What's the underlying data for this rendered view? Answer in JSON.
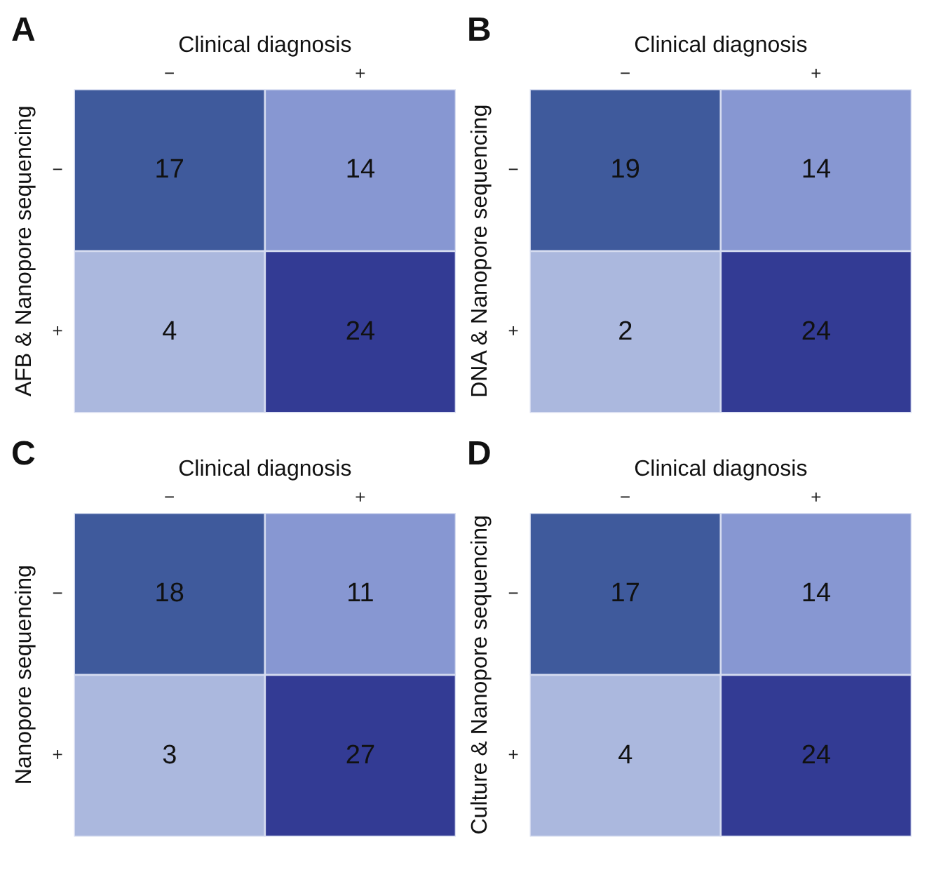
{
  "chart_data": [
    {
      "type": "heatmap",
      "title": "A",
      "xlabel": "Clinical diagnosis",
      "ylabel": "AFB & Nanopore sequencing",
      "categories": [
        "−",
        "+"
      ],
      "y_categories": [
        "−",
        "+"
      ],
      "cells": [
        [
          17,
          14
        ],
        [
          4,
          24
        ]
      ],
      "colors": [
        [
          "#3f5a9c",
          "#8797d2"
        ],
        [
          "#abb8de",
          "#333b94"
        ]
      ],
      "data_labels": true,
      "grid": false,
      "legend": false
    },
    {
      "type": "heatmap",
      "title": "B",
      "xlabel": "Clinical diagnosis",
      "ylabel": "DNA & Nanopore sequencing",
      "categories": [
        "−",
        "+"
      ],
      "y_categories": [
        "−",
        "+"
      ],
      "cells": [
        [
          19,
          14
        ],
        [
          2,
          24
        ]
      ],
      "colors": [
        [
          "#3f5a9c",
          "#8797d2"
        ],
        [
          "#abb8de",
          "#333b94"
        ]
      ],
      "data_labels": true,
      "grid": false,
      "legend": false
    },
    {
      "type": "heatmap",
      "title": "C",
      "xlabel": "Clinical diagnosis",
      "ylabel": "Nanopore sequencing",
      "categories": [
        "−",
        "+"
      ],
      "y_categories": [
        "−",
        "+"
      ],
      "cells": [
        [
          18,
          11
        ],
        [
          3,
          27
        ]
      ],
      "colors": [
        [
          "#3f5a9c",
          "#8797d2"
        ],
        [
          "#abb8de",
          "#333b94"
        ]
      ],
      "data_labels": true,
      "grid": false,
      "legend": false
    },
    {
      "type": "heatmap",
      "title": "D",
      "xlabel": "Clinical diagnosis",
      "ylabel": "Culture & Nanopore sequencing",
      "categories": [
        "−",
        "+"
      ],
      "y_categories": [
        "−",
        "+"
      ],
      "cells": [
        [
          17,
          14
        ],
        [
          4,
          24
        ]
      ],
      "colors": [
        [
          "#3f5a9c",
          "#8797d2"
        ],
        [
          "#abb8de",
          "#333b94"
        ]
      ],
      "data_labels": true,
      "grid": false,
      "legend": false
    }
  ]
}
